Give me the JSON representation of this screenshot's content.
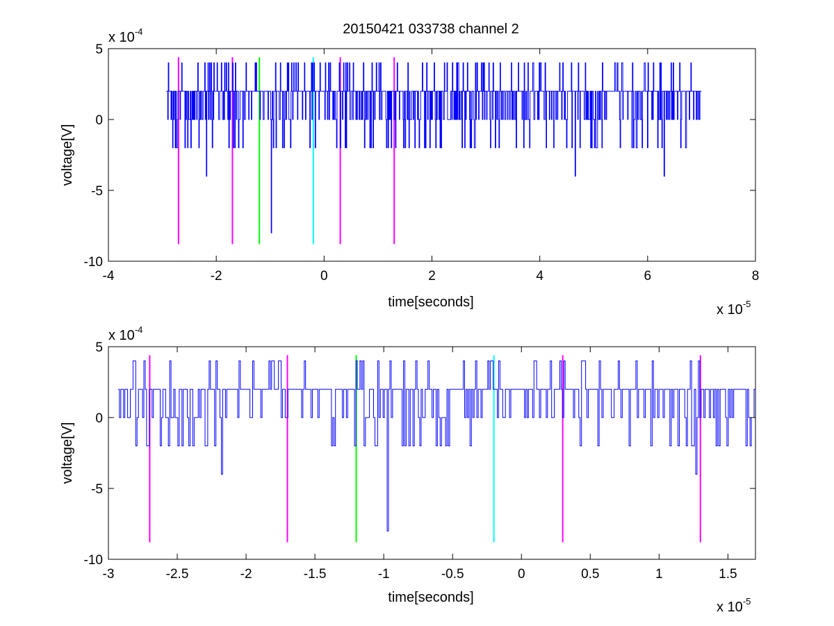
{
  "title": "20150421 033738 channel 2",
  "chart_data": [
    {
      "type": "line",
      "xlabel": "time[seconds]",
      "ylabel": "voltage[V]",
      "xlim": [
        -4,
        8
      ],
      "ylim": [
        -10,
        5
      ],
      "x_scale_label": "x 10",
      "x_scale_exp": "-5",
      "y_scale_label": "x 10",
      "y_scale_exp": "-4",
      "xticks": [
        -4,
        -2,
        0,
        2,
        4,
        6,
        8
      ],
      "xtick_labels": [
        "-4",
        "-2",
        "0",
        "2",
        "4",
        "6",
        "8"
      ],
      "yticks": [
        -10,
        -5,
        0,
        5
      ],
      "ytick_labels": [
        "-10",
        "-5",
        "0",
        "5"
      ],
      "signal": {
        "color": "#0000ff",
        "x_range": [
          -2.93,
          7.0
        ],
        "levels": [
          -2,
          0,
          2,
          4
        ],
        "spikes": [
          {
            "x": -2.18,
            "y": -4
          },
          {
            "x": -0.98,
            "y": -8
          },
          {
            "x": 4.65,
            "y": -4
          },
          {
            "x": 6.3,
            "y": -4
          }
        ]
      },
      "markers": [
        {
          "x": -2.7,
          "color": "#ff00ff"
        },
        {
          "x": -1.7,
          "color": "#ff00ff"
        },
        {
          "x": -1.2,
          "color": "#00ff00"
        },
        {
          "x": -0.2,
          "color": "#00ffff"
        },
        {
          "x": 0.3,
          "color": "#ff00ff"
        },
        {
          "x": 1.3,
          "color": "#ff00ff"
        }
      ],
      "marker_y_range": [
        -8.8,
        4.4
      ]
    },
    {
      "type": "line",
      "xlabel": "time[seconds]",
      "ylabel": "voltage[V]",
      "xlim": [
        -3.0,
        1.7
      ],
      "ylim": [
        -10,
        5
      ],
      "x_scale_label": "x 10",
      "x_scale_exp": "-5",
      "y_scale_label": "x 10",
      "y_scale_exp": "-4",
      "xticks": [
        -3,
        -2.5,
        -2,
        -1.5,
        -1,
        -0.5,
        0,
        0.5,
        1,
        1.5
      ],
      "xtick_labels": [
        "-3",
        "-2.5",
        "-2",
        "-1.5",
        "-1",
        "-0.5",
        "0",
        "0.5",
        "1",
        "1.5"
      ],
      "yticks": [
        -10,
        -5,
        0,
        5
      ],
      "ytick_labels": [
        "-10",
        "-5",
        "0",
        "5"
      ],
      "signal": {
        "color": "#0000ff",
        "x_range": [
          -2.93,
          1.7
        ],
        "levels": [
          -2,
          0,
          2,
          4
        ],
        "spikes": [
          {
            "x": -2.18,
            "y": -4
          },
          {
            "x": -0.98,
            "y": -8
          },
          {
            "x": 1.27,
            "y": -4
          }
        ]
      },
      "markers": [
        {
          "x": -2.7,
          "color": "#ff00ff"
        },
        {
          "x": -1.7,
          "color": "#ff00ff"
        },
        {
          "x": -1.2,
          "color": "#00ff00"
        },
        {
          "x": -0.2,
          "color": "#00ffff"
        },
        {
          "x": 0.3,
          "color": "#ff00ff"
        },
        {
          "x": 1.3,
          "color": "#ff00ff"
        }
      ],
      "marker_y_range": [
        -8.8,
        4.4
      ]
    }
  ]
}
